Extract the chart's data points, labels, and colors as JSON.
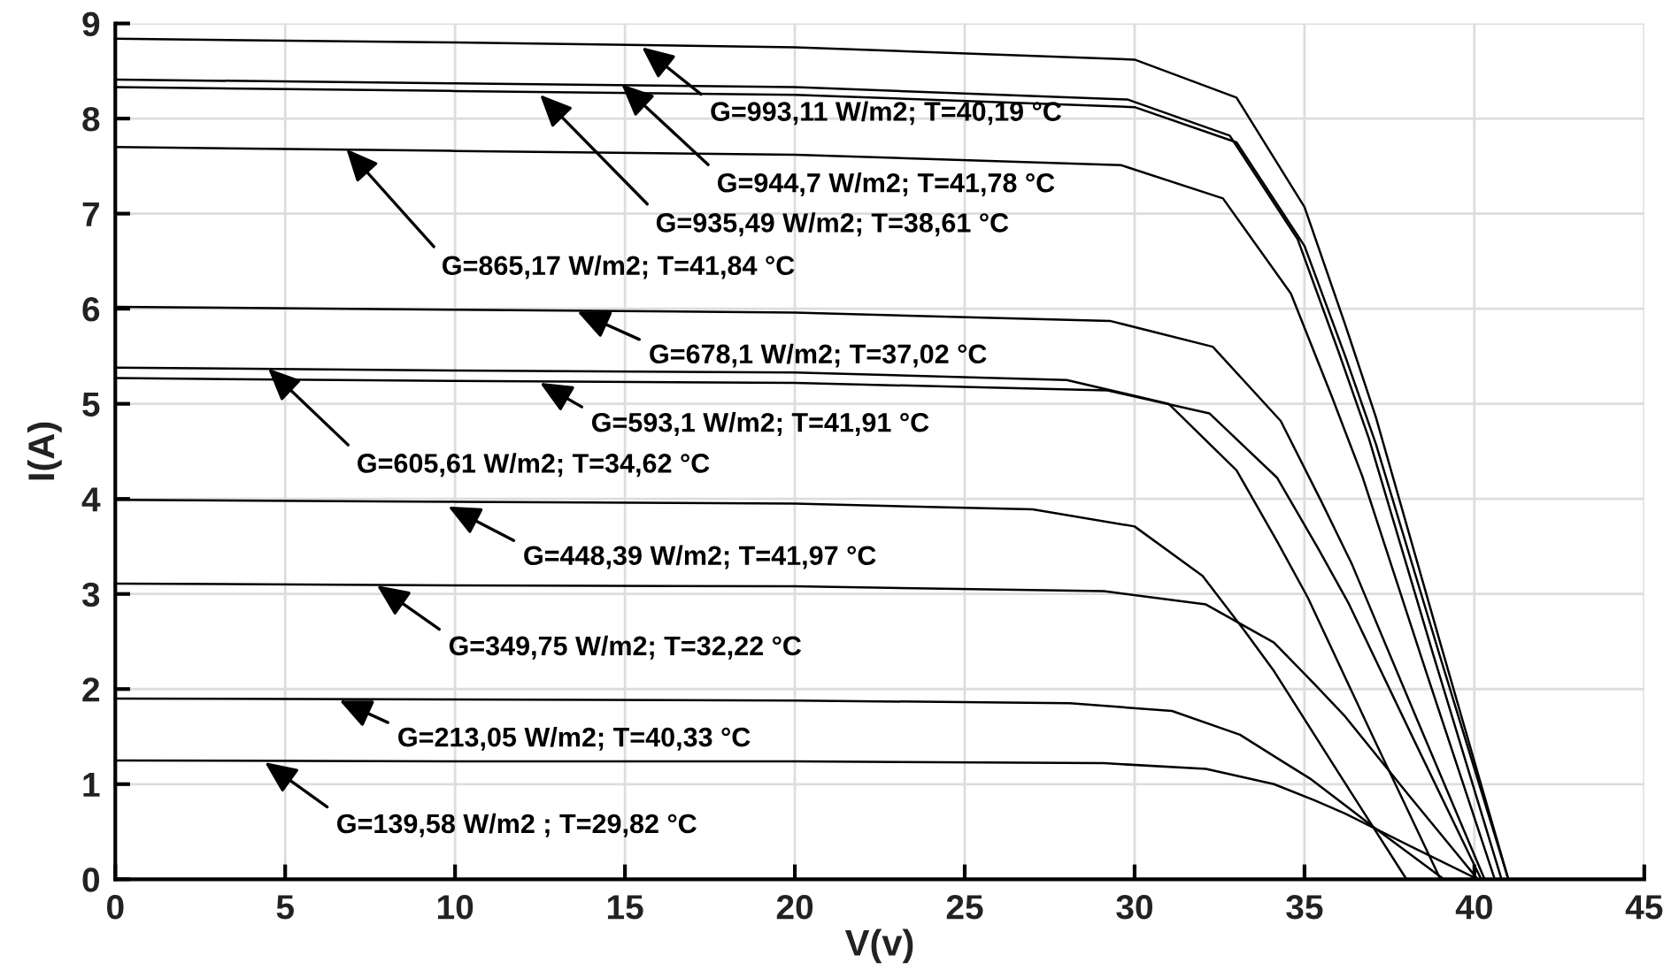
{
  "chart_data": {
    "type": "line",
    "xlabel": "V(v)",
    "ylabel": "I(A)",
    "xlim": [
      0,
      45
    ],
    "ylim": [
      0,
      9
    ],
    "xticks": [
      0,
      5,
      10,
      15,
      20,
      25,
      30,
      35,
      40,
      45
    ],
    "yticks": [
      0,
      1,
      2,
      3,
      4,
      5,
      6,
      7,
      8,
      9
    ],
    "grid": true,
    "legend": false,
    "marker": "none",
    "line_style": "solid",
    "series": [
      {
        "color": "#000000",
        "x": [
          0,
          10,
          20,
          30,
          33,
          35,
          36.2,
          37.1,
          39,
          41,
          44
        ],
        "values": [
          8.84,
          8.8,
          8.75,
          8.62,
          8.22,
          7.07,
          5.83,
          4.86,
          2.48,
          0,
          0
        ]
      },
      {
        "color": "#000000",
        "x": [
          0,
          10,
          20,
          29.8,
          32.8,
          34.8,
          36,
          36.9,
          38.8,
          40.8,
          44
        ],
        "values": [
          8.41,
          8.37,
          8.33,
          8.2,
          7.82,
          6.73,
          5.55,
          4.63,
          2.35,
          0,
          0
        ]
      },
      {
        "color": "#000000",
        "x": [
          0,
          10,
          20,
          30,
          33,
          35,
          36.2,
          37.1,
          39,
          41,
          44
        ],
        "values": [
          8.33,
          8.29,
          8.25,
          8.12,
          7.75,
          6.66,
          5.5,
          4.58,
          2.33,
          0,
          0
        ]
      },
      {
        "color": "#000000",
        "x": [
          0,
          10,
          20,
          29.6,
          32.6,
          34.6,
          35.8,
          36.7,
          38.6,
          40.6,
          44
        ],
        "values": [
          7.7,
          7.66,
          7.62,
          7.51,
          7.16,
          6.16,
          5.08,
          4.24,
          2.16,
          0,
          0
        ]
      },
      {
        "color": "#000000",
        "x": [
          0,
          10,
          20,
          29.3,
          32.3,
          34.3,
          35.5,
          36.4,
          38.3,
          40.3,
          44
        ],
        "values": [
          6.02,
          5.99,
          5.96,
          5.87,
          5.6,
          4.82,
          3.97,
          3.31,
          1.69,
          0,
          0
        ]
      },
      {
        "color": "#000000",
        "x": [
          0,
          10,
          20,
          29.2,
          32.2,
          34.2,
          35.4,
          36.3,
          38.2,
          40.2,
          44
        ],
        "values": [
          5.27,
          5.24,
          5.22,
          5.14,
          4.9,
          4.22,
          3.48,
          2.9,
          1.48,
          0,
          0
        ]
      },
      {
        "color": "#000000",
        "x": [
          0,
          10,
          20,
          28,
          31,
          33,
          34.2,
          35.1,
          37,
          39,
          44
        ],
        "values": [
          5.38,
          5.35,
          5.33,
          5.25,
          5.0,
          4.3,
          3.55,
          2.96,
          1.51,
          0,
          0
        ]
      },
      {
        "color": "#000000",
        "x": [
          0,
          10,
          20,
          27,
          30,
          32,
          33.2,
          34.1,
          36,
          38,
          44
        ],
        "values": [
          3.99,
          3.97,
          3.95,
          3.89,
          3.71,
          3.19,
          2.63,
          2.19,
          1.12,
          0,
          0
        ]
      },
      {
        "color": "#000000",
        "x": [
          0,
          10,
          20,
          29.1,
          32.1,
          34.1,
          35.3,
          36.2,
          38.1,
          40.1,
          44
        ],
        "values": [
          3.11,
          3.09,
          3.08,
          3.03,
          2.89,
          2.49,
          2.05,
          1.71,
          0.87,
          0,
          0
        ]
      },
      {
        "color": "#000000",
        "x": [
          0,
          10,
          20,
          28.1,
          31.1,
          33.1,
          34.3,
          35.2,
          37.1,
          39.1,
          44
        ],
        "values": [
          1.9,
          1.89,
          1.88,
          1.85,
          1.77,
          1.52,
          1.25,
          1.05,
          0.53,
          0,
          0
        ]
      },
      {
        "color": "#000000",
        "x": [
          0,
          10,
          20,
          29.1,
          32.1,
          34.1,
          35.3,
          36.2,
          38.1,
          40.1,
          44
        ],
        "values": [
          1.25,
          1.24,
          1.24,
          1.22,
          1.16,
          1.0,
          0.83,
          0.69,
          0.35,
          0,
          0
        ]
      }
    ],
    "annotations": [
      {
        "text": "G=993,11 W/m2; T=40,19 °C",
        "x": 15.5,
        "y": 8.75
      },
      {
        "text": "G=944,7 W/m2; T=41,78 °C",
        "x": 14.9,
        "y": 8.36
      },
      {
        "text": "G=935,49 W/m2; T=38,61 °C",
        "x": 12.5,
        "y": 8.25
      },
      {
        "text": "G=865,17 W/m2; T=41,84 °C",
        "x": 6.8,
        "y": 7.68
      },
      {
        "text": "G=678,1 W/m2; T=37,02 °C",
        "x": 13.6,
        "y": 5.97
      },
      {
        "text": "G=593,1 W/m2; T=41,91 °C",
        "x": 12.5,
        "y": 5.22
      },
      {
        "text": "G=605,61 W/m2; T=34,62 °C",
        "x": 4.5,
        "y": 5.37
      },
      {
        "text": "G=448,39 W/m2; T=41,97 °C",
        "x": 9.8,
        "y": 3.92
      },
      {
        "text": "G=349,75 W/m2; T=32,22 °C",
        "x": 7.7,
        "y": 3.09
      },
      {
        "text": "G=213,05 W/m2; T=40,33 °C",
        "x": 6.6,
        "y": 1.88
      },
      {
        "text": "G=139,58 W/m2 ; T=29,82 °C",
        "x": 4.4,
        "y": 1.23
      }
    ]
  }
}
